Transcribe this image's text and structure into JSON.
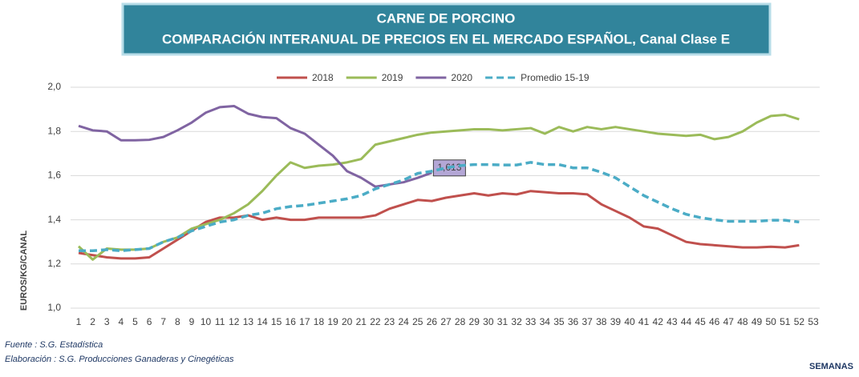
{
  "chart_data": {
    "type": "line",
    "title": "CARNE DE PORCINO",
    "subtitle": "COMPARACIÓN INTERANUAL DE PRECIOS EN EL MERCADO ESPAÑOL, Canal Clase E",
    "y_label": "EUROS/KG/CANAL",
    "x_label": "SEMANAS",
    "notes": [
      "Fuente :  S.G. Estadística",
      "Elaboración : S.G. Producciones Ganaderas y Cinegéticas"
    ],
    "x": [
      1,
      2,
      3,
      4,
      5,
      6,
      7,
      8,
      9,
      10,
      11,
      12,
      13,
      14,
      15,
      16,
      17,
      18,
      19,
      20,
      21,
      22,
      23,
      24,
      25,
      26,
      27,
      28,
      29,
      30,
      31,
      32,
      33,
      34,
      35,
      36,
      37,
      38,
      39,
      40,
      41,
      42,
      43,
      44,
      45,
      46,
      47,
      48,
      49,
      50,
      51,
      52,
      53
    ],
    "xlim": [
      1,
      53
    ],
    "ylim": [
      1.0,
      2.0
    ],
    "yticks": [
      {
        "value": 1.0,
        "label": "1,0"
      },
      {
        "value": 1.2,
        "label": "1,2"
      },
      {
        "value": 1.4,
        "label": "1,4"
      },
      {
        "value": 1.6,
        "label": "1,6"
      },
      {
        "value": 1.8,
        "label": "1,8"
      },
      {
        "value": 2.0,
        "label": "2,0"
      }
    ],
    "grid": true,
    "legend": "top",
    "series": [
      {
        "name": "2018",
        "color": "#c0504d",
        "values": [
          1.25,
          1.24,
          1.23,
          1.225,
          1.225,
          1.23,
          1.27,
          1.31,
          1.35,
          1.39,
          1.41,
          1.41,
          1.42,
          1.4,
          1.41,
          1.4,
          1.4,
          1.41,
          1.41,
          1.41,
          1.41,
          1.42,
          1.45,
          1.47,
          1.49,
          1.485,
          1.5,
          1.51,
          1.52,
          1.51,
          1.52,
          1.515,
          1.53,
          1.525,
          1.52,
          1.52,
          1.515,
          1.47,
          1.44,
          1.41,
          1.37,
          1.36,
          1.33,
          1.3,
          1.29,
          1.285,
          1.28,
          1.275,
          1.275,
          1.278,
          1.275,
          1.285,
          null
        ]
      },
      {
        "name": "2019",
        "color": "#9bbb59",
        "values": [
          1.28,
          1.22,
          1.27,
          1.265,
          1.265,
          1.27,
          1.3,
          1.32,
          1.36,
          1.38,
          1.4,
          1.43,
          1.47,
          1.53,
          1.6,
          1.66,
          1.635,
          1.645,
          1.65,
          1.66,
          1.675,
          1.74,
          1.755,
          1.77,
          1.785,
          1.795,
          1.8,
          1.805,
          1.81,
          1.81,
          1.805,
          1.81,
          1.815,
          1.79,
          1.82,
          1.8,
          1.82,
          1.81,
          1.82,
          1.81,
          1.8,
          1.79,
          1.785,
          1.78,
          1.785,
          1.765,
          1.775,
          1.8,
          1.84,
          1.87,
          1.875,
          1.855,
          null
        ]
      },
      {
        "name": "2020",
        "color": "#8064a2",
        "values": [
          1.825,
          1.805,
          1.8,
          1.76,
          1.76,
          1.762,
          1.775,
          1.805,
          1.84,
          1.885,
          1.91,
          1.915,
          1.88,
          1.865,
          1.86,
          1.815,
          1.79,
          1.74,
          1.69,
          1.62,
          1.59,
          1.55,
          1.56,
          1.57,
          1.59,
          1.613,
          null,
          null,
          null,
          null,
          null,
          null,
          null,
          null,
          null,
          null,
          null,
          null,
          null,
          null,
          null,
          null,
          null,
          null,
          null,
          null,
          null,
          null,
          null,
          null,
          null,
          null,
          null
        ],
        "value_labels": [
          null,
          null,
          null,
          null,
          null,
          null,
          null,
          null,
          null,
          null,
          null,
          null,
          null,
          null,
          null,
          null,
          null,
          null,
          null,
          null,
          null,
          null,
          null,
          null,
          null,
          "1,613",
          null,
          null,
          null,
          null,
          null,
          null,
          null,
          null,
          null,
          null,
          null,
          null,
          null,
          null,
          null,
          null,
          null,
          null,
          null,
          null,
          null,
          null,
          null,
          null,
          null,
          null,
          null
        ]
      },
      {
        "name": "Promedio 15-19",
        "color": "#4bacc6",
        "dashed": true,
        "values": [
          1.26,
          1.26,
          1.265,
          1.26,
          1.265,
          1.27,
          1.3,
          1.32,
          1.35,
          1.37,
          1.39,
          1.4,
          1.42,
          1.43,
          1.45,
          1.46,
          1.465,
          1.475,
          1.485,
          1.495,
          1.51,
          1.54,
          1.56,
          1.58,
          1.61,
          1.62,
          1.635,
          1.645,
          1.65,
          1.65,
          1.648,
          1.648,
          1.66,
          1.65,
          1.65,
          1.635,
          1.635,
          1.615,
          1.59,
          1.55,
          1.51,
          1.48,
          1.45,
          1.425,
          1.41,
          1.4,
          1.393,
          1.393,
          1.393,
          1.398,
          1.398,
          1.39,
          null
        ]
      }
    ]
  }
}
